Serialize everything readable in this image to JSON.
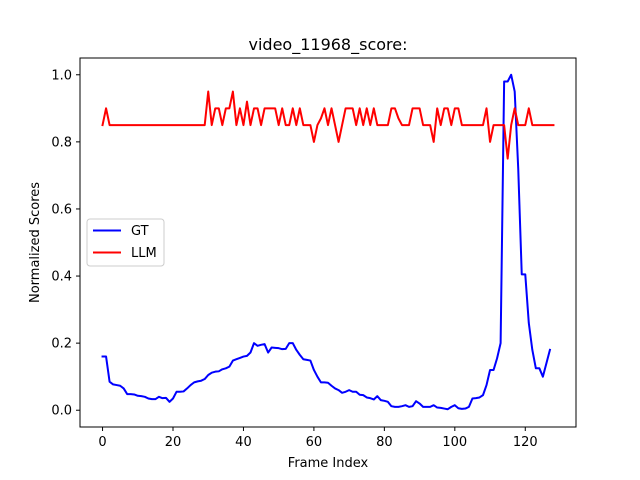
{
  "chart_data": {
    "type": "line",
    "title": "video_11968_score:",
    "xlabel": "Frame Index",
    "ylabel": "Normalized Scores",
    "xlim": [
      -6.4,
      134.4
    ],
    "ylim": [
      -0.05,
      1.05
    ],
    "xticks": [
      0,
      20,
      40,
      60,
      80,
      100,
      120
    ],
    "yticks": [
      0.0,
      0.2,
      0.4,
      0.6,
      0.8,
      1.0
    ],
    "ytick_labels": [
      "0.0",
      "0.2",
      "0.4",
      "0.6",
      "0.8",
      "1.0"
    ],
    "grid": false,
    "legend_position": "center-left",
    "series": [
      {
        "name": "GT",
        "color": "#0000ff",
        "values": [
          0.16,
          0.16,
          0.085,
          0.077,
          0.075,
          0.073,
          0.065,
          0.048,
          0.048,
          0.047,
          0.043,
          0.042,
          0.04,
          0.035,
          0.033,
          0.033,
          0.04,
          0.036,
          0.037,
          0.025,
          0.035,
          0.055,
          0.055,
          0.056,
          0.065,
          0.075,
          0.083,
          0.086,
          0.088,
          0.093,
          0.105,
          0.112,
          0.115,
          0.116,
          0.122,
          0.125,
          0.13,
          0.148,
          0.152,
          0.156,
          0.16,
          0.162,
          0.172,
          0.2,
          0.192,
          0.195,
          0.197,
          0.172,
          0.187,
          0.186,
          0.185,
          0.182,
          0.183,
          0.2,
          0.2,
          0.18,
          0.165,
          0.152,
          0.15,
          0.148,
          0.12,
          0.1,
          0.083,
          0.083,
          0.082,
          0.073,
          0.065,
          0.06,
          0.052,
          0.055,
          0.06,
          0.055,
          0.055,
          0.046,
          0.045,
          0.038,
          0.036,
          0.032,
          0.042,
          0.03,
          0.028,
          0.025,
          0.012,
          0.01,
          0.01,
          0.012,
          0.015,
          0.01,
          0.012,
          0.027,
          0.02,
          0.01,
          0.01,
          0.01,
          0.015,
          0.008,
          0.007,
          0.005,
          0.003,
          0.01,
          0.015,
          0.006,
          0.004,
          0.005,
          0.01,
          0.035,
          0.036,
          0.038,
          0.045,
          0.075,
          0.12,
          0.12,
          0.155,
          0.2,
          0.98,
          0.98,
          1.0,
          0.95,
          0.72,
          0.405,
          0.405,
          0.26,
          0.18,
          0.125,
          0.125,
          0.1,
          0.14,
          0.18
        ]
      },
      {
        "name": "LLM",
        "color": "#ff0000",
        "values": [
          0.85,
          0.9,
          0.85,
          0.85,
          0.85,
          0.85,
          0.85,
          0.85,
          0.85,
          0.85,
          0.85,
          0.85,
          0.85,
          0.85,
          0.85,
          0.85,
          0.85,
          0.85,
          0.85,
          0.85,
          0.85,
          0.85,
          0.85,
          0.85,
          0.85,
          0.85,
          0.85,
          0.85,
          0.85,
          0.85,
          0.95,
          0.85,
          0.9,
          0.9,
          0.85,
          0.9,
          0.9,
          0.95,
          0.85,
          0.9,
          0.85,
          0.92,
          0.85,
          0.9,
          0.9,
          0.85,
          0.9,
          0.9,
          0.9,
          0.9,
          0.85,
          0.9,
          0.85,
          0.85,
          0.9,
          0.85,
          0.9,
          0.85,
          0.85,
          0.85,
          0.8,
          0.85,
          0.87,
          0.9,
          0.85,
          0.9,
          0.85,
          0.8,
          0.85,
          0.9,
          0.9,
          0.9,
          0.85,
          0.9,
          0.85,
          0.9,
          0.85,
          0.9,
          0.85,
          0.85,
          0.85,
          0.85,
          0.9,
          0.9,
          0.87,
          0.85,
          0.85,
          0.85,
          0.9,
          0.9,
          0.9,
          0.85,
          0.85,
          0.85,
          0.8,
          0.9,
          0.85,
          0.9,
          0.9,
          0.85,
          0.9,
          0.9,
          0.85,
          0.85,
          0.85,
          0.85,
          0.85,
          0.85,
          0.85,
          0.9,
          0.8,
          0.85,
          0.85,
          0.85,
          0.85,
          0.75,
          0.85,
          0.9,
          0.85,
          0.85,
          0.85,
          0.9,
          0.85,
          0.85,
          0.85,
          0.85,
          0.85,
          0.85,
          0.85
        ]
      }
    ]
  }
}
